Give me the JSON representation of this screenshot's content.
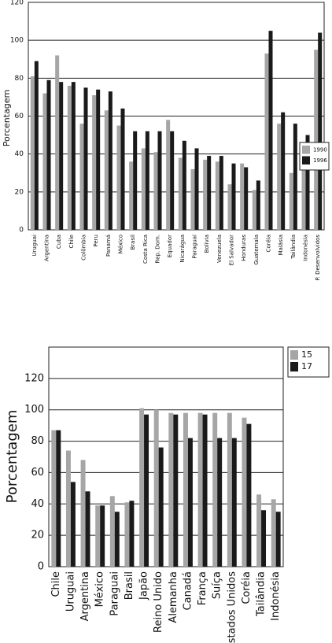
{
  "chart_data": [
    {
      "type": "bar",
      "y_label": "Porcentagem",
      "categories": [
        "Uruguai",
        "Argentina",
        "Cuba",
        "Chile",
        "Colômbia",
        "Peru",
        "Panamá",
        "México",
        "Brasil",
        "Costa Rica",
        "Rep. Dom.",
        "Equador",
        "Nicarágua",
        "Paraguai",
        "Bolívia",
        "Venezuela",
        "El Salvador",
        "Honduras",
        "Guatemala",
        "Coréia",
        "Malásia",
        "Tailândia",
        "Indonésia",
        "P. Desenvolvidos"
      ],
      "series": [
        {
          "name": "1990",
          "color": "#a6a6a6",
          "values": [
            81,
            72,
            92,
            76,
            56,
            71,
            63,
            55,
            36,
            43,
            41,
            58,
            38,
            32,
            37,
            36,
            24,
            35,
            21,
            93,
            56,
            30,
            42,
            95
          ]
        },
        {
          "name": "1996",
          "color": "#1a1a1a",
          "values": [
            89,
            79,
            78,
            78,
            75,
            74,
            73,
            64,
            52,
            52,
            52,
            52,
            47,
            43,
            39,
            39,
            35,
            33,
            26,
            105,
            62,
            56,
            50,
            104
          ]
        }
      ],
      "ylim": [
        0,
        120
      ],
      "yticks": [
        0,
        20,
        40,
        60,
        80,
        100,
        120
      ],
      "grid": true
    },
    {
      "type": "bar",
      "y_label": "Porcentagem",
      "categories": [
        "Chile",
        "Uruguai",
        "Argentina",
        "México",
        "Paraguai",
        "Brasil",
        "Japão",
        "Reino Unido",
        "Alemanha",
        "Canadá",
        "França",
        "Suíça",
        "Estados Unidos",
        "Coréia",
        "Tailândia",
        "Indonésia"
      ],
      "series": [
        {
          "name": "15",
          "color": "#a6a6a6",
          "values": [
            87,
            74,
            68,
            39,
            45,
            41,
            101,
            100,
            98,
            98,
            98,
            98,
            98,
            95,
            46,
            43
          ]
        },
        {
          "name": "17",
          "color": "#1a1a1a",
          "values": [
            87,
            54,
            48,
            39,
            35,
            42,
            97,
            76,
            97,
            82,
            97,
            82,
            82,
            91,
            36,
            35
          ]
        }
      ],
      "ylim": [
        0,
        140
      ],
      "yticks": [
        0,
        20,
        40,
        60,
        80,
        100,
        120
      ],
      "grid": true
    }
  ]
}
